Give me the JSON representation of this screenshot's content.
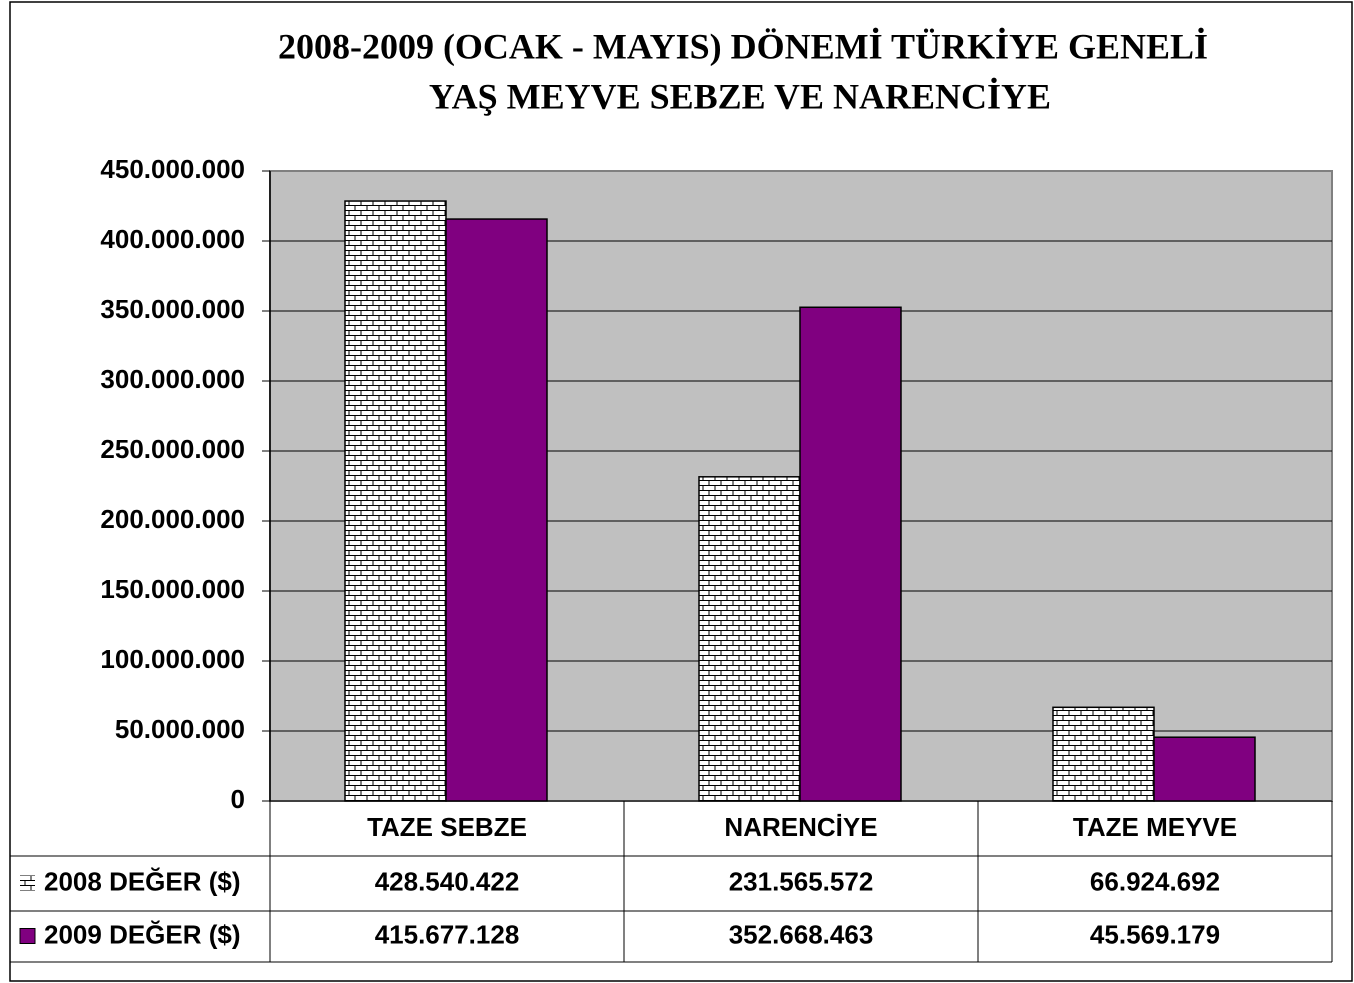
{
  "chart_data": {
    "type": "bar",
    "title": [
      "2008-2009 (OCAK - MAYIS) DÖNEMİ TÜRKİYE GENELİ",
      "YAŞ MEYVE SEBZE VE NARENCİYE"
    ],
    "categories": [
      "TAZE SEBZE",
      "NARENCİYE",
      "TAZE MEYVE"
    ],
    "series": [
      {
        "name": "2008 DEĞER ($)",
        "color": "#ffffff",
        "values": [
          428540422,
          231565572,
          66924692
        ],
        "value_labels": [
          "428.540.422",
          "231.565.572",
          "66.924.692"
        ]
      },
      {
        "name": "2009 DEĞER ($)",
        "color": "#800080",
        "values": [
          415677128,
          352668463,
          45569179
        ],
        "value_labels": [
          "415.677.128",
          "352.668.463",
          "45.569.179"
        ]
      }
    ],
    "ylim": [
      0,
      450000000
    ],
    "yticks": [
      0,
      {
        "value": 50000000,
        "label": "50.000.000"
      },
      {
        "value": 100000000,
        "label": "100.000.000"
      },
      {
        "value": 150000000,
        "label": "150.000.000"
      },
      {
        "value": 200000000,
        "label": "200.000.000"
      },
      {
        "value": 250000000,
        "label": "250.000.000"
      },
      {
        "value": 300000000,
        "label": "300.000.000"
      },
      {
        "value": 350000000,
        "label": "350.000.000"
      },
      {
        "value": 400000000,
        "label": "400.000.000"
      },
      {
        "value": 450000000,
        "label": "450.000.000"
      }
    ],
    "grid": true
  }
}
